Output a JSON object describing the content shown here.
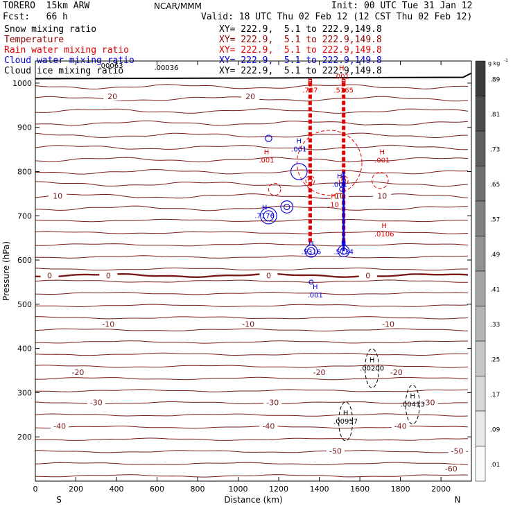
{
  "header": {
    "model": "TORERO  15km ARW",
    "center": "NCAR/MMM",
    "init": "Init: 00 UTC Tue 31 Jan 12",
    "fcst": "Fcst:   66 h",
    "valid": "Valid: 18 UTC Thu 02 Feb 12 (12 CST Thu 02 Feb 12)"
  },
  "legend": [
    {
      "name": "Snow mixing ratio",
      "color": "#000000",
      "xy": "XY= 222.9,  5.1 to 222.9,149.8"
    },
    {
      "name": "Temperature",
      "color": "#8b0000",
      "xy": "XY= 222.9,  5.1 to 222.9,149.8"
    },
    {
      "name": "Rain water mixing ratio",
      "color": "#e00000",
      "xy": "XY= 222.9,  5.1 to 222.9,149.8"
    },
    {
      "name": "Cloud water mixing ratio",
      "color": "#0000dd",
      "xy": "XY= 222.9,  5.1 to 222.9,149.8"
    },
    {
      "name": "Cloud ice mixing ratio",
      "color": "#000000",
      "xy": "XY= 222.9,  5.1 to 222.9,149.8"
    }
  ],
  "top_labels": [
    ".00063",
    ".00036"
  ],
  "colorbar": {
    "unit": "g kg",
    "unit_sup": "-1",
    "labels": [
      ".89",
      ".81",
      ".73",
      ".65",
      ".57",
      ".49",
      ".41",
      ".33",
      ".25",
      ".17",
      ".09",
      ".01"
    ]
  },
  "chart_data": {
    "type": "cross-section contour",
    "xlabel": "Distance (km)",
    "ylabel": "Pressure (hPa)",
    "xlim": [
      0,
      2150
    ],
    "ylim": [
      1050,
      100
    ],
    "xticks": [
      0,
      200,
      400,
      600,
      800,
      1000,
      1200,
      1400,
      1600,
      1800,
      2000
    ],
    "yticks": [
      200,
      300,
      400,
      500,
      600,
      700,
      800,
      900,
      1000
    ],
    "end_labels": {
      "left": "S",
      "right": "N"
    },
    "temperature_isotherms": [
      {
        "label": "-60",
        "p": 128
      },
      {
        "label": "-50",
        "p": 168
      },
      {
        "label": "-40",
        "p": 225
      },
      {
        "label": "-30",
        "p": 278
      },
      {
        "label": "-20",
        "p": 346
      },
      {
        "label": "-10",
        "p": 455
      },
      {
        "label": "0",
        "p": 565
      },
      {
        "label": "10",
        "p": 745
      },
      {
        "label": "20",
        "p": 970
      }
    ],
    "rain_maxima": [
      {
        "label": ".707",
        "x": 1355,
        "p": 983
      },
      {
        "label": ".5365",
        "x": 1520,
        "p": 983
      },
      {
        "label": ".0106",
        "x": 1720,
        "p": 658
      },
      {
        "label": ".001",
        "x": 1140,
        "p": 825
      },
      {
        "label": ".001",
        "x": 1710,
        "p": 825
      },
      {
        "label": ".001",
        "x": 1510,
        "p": 1015
      },
      {
        "label": ".10",
        "x": 1470,
        "p": 725
      }
    ],
    "cloud_water_maxima": [
      {
        "label": ".7176",
        "x": 1130,
        "p": 700
      },
      {
        "label": ".5316",
        "x": 1360,
        "p": 618
      },
      {
        "label": ".5134",
        "x": 1520,
        "p": 618
      },
      {
        "label": ".001",
        "x": 1380,
        "p": 520
      },
      {
        "label": ".001",
        "x": 1500,
        "p": 770
      },
      {
        "label": ".001",
        "x": 1300,
        "p": 850
      }
    ],
    "ice_maxima": [
      {
        "label": ".00957",
        "x": 1530,
        "p": 235
      },
      {
        "label": ".00413",
        "x": 1860,
        "p": 273
      },
      {
        "label": ".00200",
        "x": 1660,
        "p": 355
      }
    ],
    "snow_columns": [
      {
        "x": 1360,
        "p_top": 450,
        "p_bot": 570
      },
      {
        "x": 1505,
        "p_top": 440,
        "p_bot": 585
      },
      {
        "x": 1570,
        "p_top": 265,
        "p_bot": 565
      }
    ]
  }
}
